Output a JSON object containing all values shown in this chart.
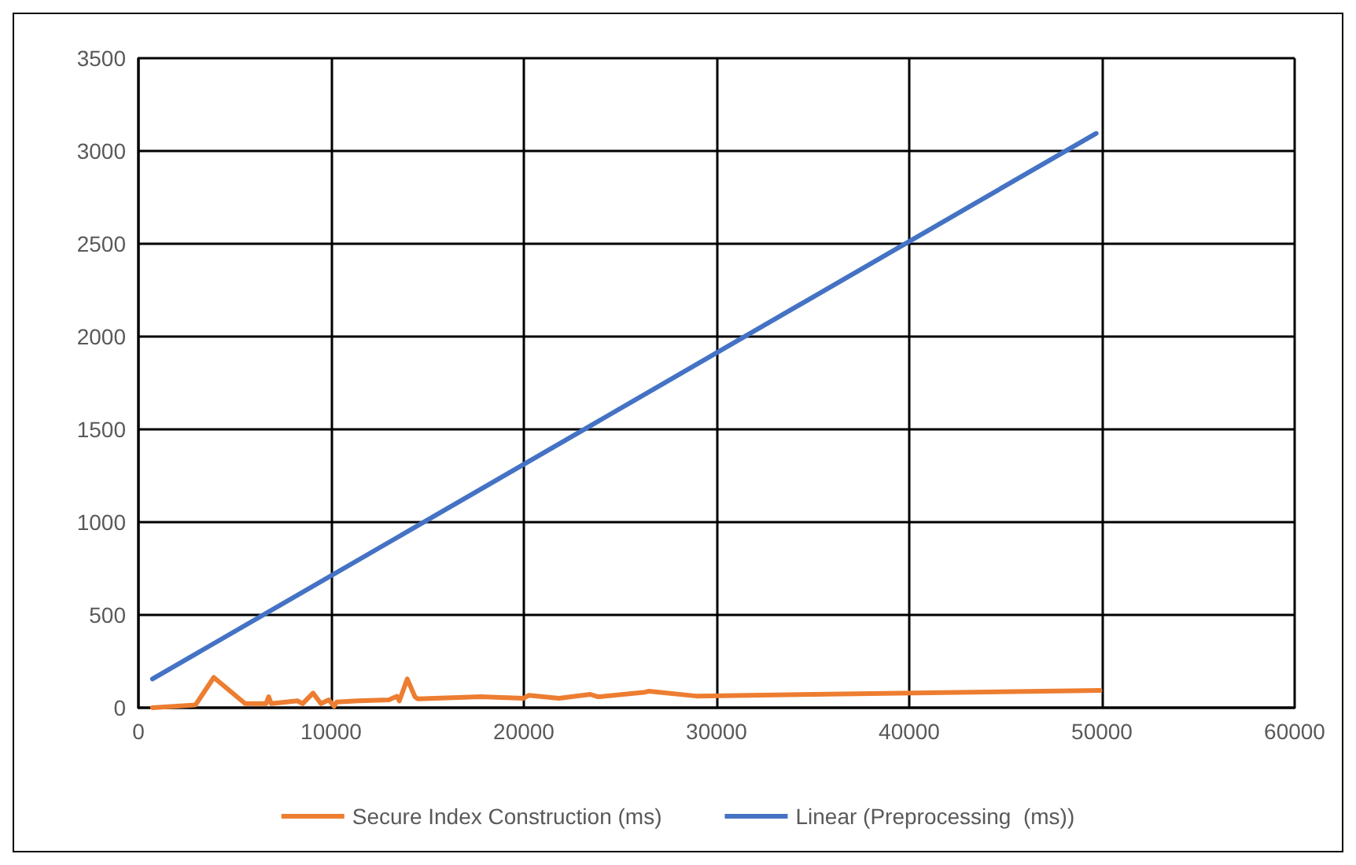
{
  "chart_data": {
    "type": "line",
    "xlim": [
      0,
      60000
    ],
    "xticks": [
      0,
      10000,
      20000,
      30000,
      40000,
      50000,
      60000
    ],
    "ylim": [
      0,
      3500
    ],
    "yticks": [
      0,
      500,
      1000,
      1500,
      2000,
      2500,
      3000,
      3500
    ],
    "grid": true,
    "legend": "bottom",
    "marker": "none",
    "line_style": "solid",
    "series": [
      {
        "name": "Secure Index Construction (ms)",
        "color": "#ed7d31",
        "x": [
          730,
          2960,
          3910,
          5540,
          6620,
          6760,
          6890,
          8250,
          8520,
          9060,
          9470,
          9880,
          10150,
          10290,
          11370,
          13000,
          13410,
          13540,
          13950,
          14350,
          14490,
          17750,
          19990,
          20270,
          21820,
          23450,
          23850,
          26300,
          26500,
          28940,
          49900
        ],
        "values": [
          0,
          15,
          163,
          22,
          22,
          59,
          22,
          37,
          22,
          79,
          22,
          42,
          8,
          31,
          37,
          42,
          62,
          37,
          155,
          59,
          48,
          59,
          51,
          67,
          51,
          72,
          59,
          84,
          89,
          63,
          93
        ]
      },
      {
        "name": "Linear (Preprocessing  (ms))",
        "color": "#4472c4",
        "x": [
          730,
          49700
        ],
        "values": [
          155,
          3095
        ]
      }
    ]
  }
}
